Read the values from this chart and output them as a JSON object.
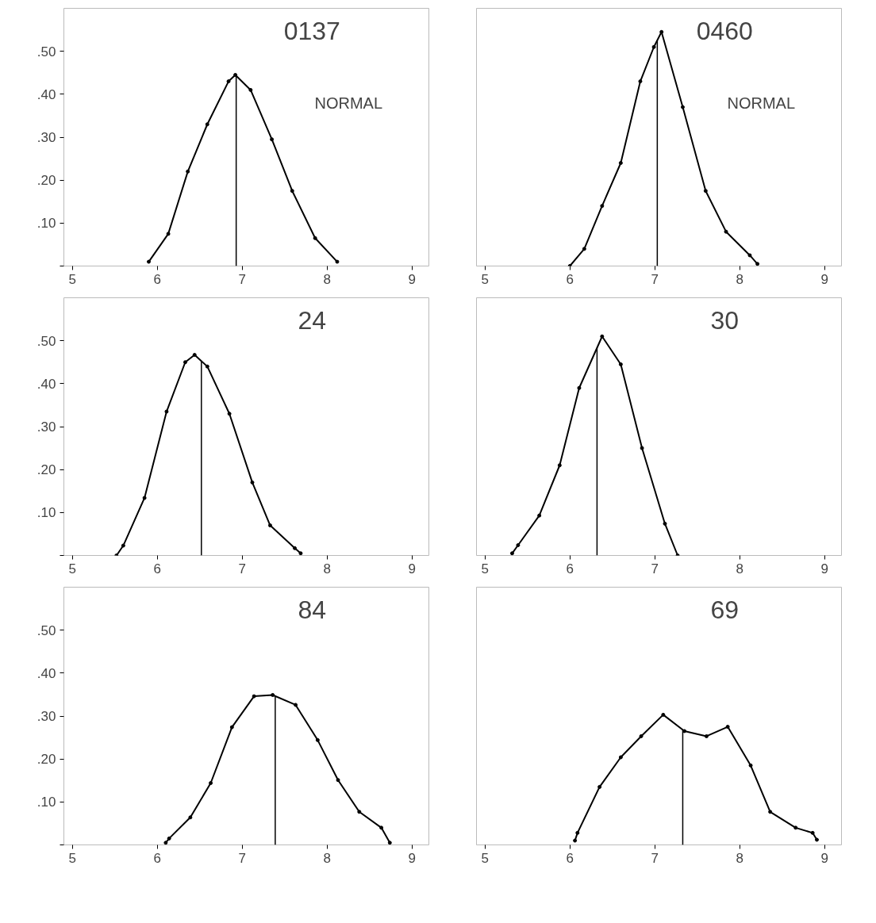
{
  "chart_data": [
    {
      "type": "line",
      "title": "0137",
      "annotations": [
        "NORMAL"
      ],
      "marker": "circle",
      "grid": false,
      "series": [
        {
          "color": "#000000",
          "x": [
            5.9,
            6.13,
            6.36,
            6.59,
            6.84,
            6.92,
            7.1,
            7.35,
            7.59,
            7.86,
            8.12
          ],
          "values": [
            0.01,
            0.075,
            0.22,
            0.33,
            0.43,
            0.445,
            0.41,
            0.295,
            0.175,
            0.065,
            0.01
          ]
        }
      ],
      "ref_lines": [
        {
          "axis": "x",
          "value": 6.93
        }
      ],
      "xlim": [
        4.9,
        9.2
      ],
      "xticks": [
        5,
        6,
        7,
        8,
        9
      ],
      "ylim": [
        0,
        0.6
      ],
      "yticks": [
        {
          "value": 0,
          "label": null
        },
        {
          "value": 0.1,
          "label": ".10"
        },
        {
          "value": 0.2,
          "label": ".20"
        },
        {
          "value": 0.3,
          "label": ".30"
        },
        {
          "value": 0.4,
          "label": ".40"
        },
        {
          "value": 0.5,
          "label": ".50"
        }
      ]
    },
    {
      "type": "line",
      "title": "0460",
      "annotations": [
        "NORMAL"
      ],
      "marker": "circle",
      "grid": false,
      "tick_labels": "x",
      "series": [
        {
          "color": "#000000",
          "x": [
            6.0,
            6.17,
            6.38,
            6.6,
            6.83,
            6.99,
            7.08,
            7.33,
            7.6,
            7.84,
            8.12,
            8.21
          ],
          "values": [
            0.0,
            0.04,
            0.14,
            0.24,
            0.43,
            0.51,
            0.545,
            0.37,
            0.175,
            0.08,
            0.025,
            0.005
          ]
        }
      ],
      "ref_lines": [
        {
          "axis": "x",
          "value": 7.03
        }
      ],
      "xlim": [
        4.9,
        9.2
      ],
      "xticks": [
        5,
        6,
        7,
        8,
        9
      ],
      "ylim": [
        0,
        0.6
      ]
    },
    {
      "type": "line",
      "title": "24",
      "marker": "circle",
      "grid": false,
      "series": [
        {
          "color": "#000000",
          "x": [
            5.52,
            5.6,
            5.85,
            6.11,
            6.33,
            6.44,
            6.59,
            6.85,
            7.12,
            7.33,
            7.62,
            7.69
          ],
          "values": [
            0.0,
            0.023,
            0.134,
            0.335,
            0.45,
            0.467,
            0.44,
            0.33,
            0.17,
            0.07,
            0.017,
            0.005
          ]
        }
      ],
      "ref_lines": [
        {
          "axis": "x",
          "value": 6.52
        }
      ],
      "xlim": [
        4.9,
        9.2
      ],
      "xticks": [
        5,
        6,
        7,
        8,
        9
      ],
      "ylim": [
        0,
        0.6
      ],
      "yticks": [
        {
          "value": 0,
          "label": null
        },
        {
          "value": 0.1,
          "label": ".10"
        },
        {
          "value": 0.2,
          "label": ".20"
        },
        {
          "value": 0.3,
          "label": ".30"
        },
        {
          "value": 0.4,
          "label": ".40"
        },
        {
          "value": 0.5,
          "label": ".50"
        }
      ]
    },
    {
      "type": "line",
      "title": "30",
      "marker": "circle",
      "grid": false,
      "tick_labels": "x",
      "series": [
        {
          "color": "#000000",
          "x": [
            5.32,
            5.39,
            5.64,
            5.88,
            6.11,
            6.38,
            6.6,
            6.85,
            7.12,
            7.27
          ],
          "values": [
            0.005,
            0.024,
            0.093,
            0.21,
            0.39,
            0.51,
            0.445,
            0.25,
            0.074,
            0.0
          ]
        }
      ],
      "ref_lines": [
        {
          "axis": "x",
          "value": 6.32
        }
      ],
      "xlim": [
        4.9,
        9.2
      ],
      "xticks": [
        5,
        6,
        7,
        8,
        9
      ],
      "ylim": [
        0,
        0.6
      ]
    },
    {
      "type": "line",
      "title": "84",
      "marker": "circle",
      "grid": false,
      "series": [
        {
          "color": "#000000",
          "x": [
            6.1,
            6.14,
            6.39,
            6.63,
            6.88,
            7.14,
            7.36,
            7.63,
            7.89,
            8.13,
            8.38,
            8.64,
            8.74
          ],
          "values": [
            0.005,
            0.015,
            0.064,
            0.144,
            0.274,
            0.346,
            0.349,
            0.326,
            0.244,
            0.151,
            0.077,
            0.04,
            0.005
          ]
        }
      ],
      "ref_lines": [
        {
          "axis": "x",
          "value": 7.39
        }
      ],
      "xlim": [
        4.9,
        9.2
      ],
      "xticks": [
        5,
        6,
        7,
        8,
        9
      ],
      "ylim": [
        0,
        0.6
      ],
      "yticks": [
        {
          "value": 0,
          "label": null
        },
        {
          "value": 0.1,
          "label": ".10"
        },
        {
          "value": 0.2,
          "label": ".20"
        },
        {
          "value": 0.3,
          "label": ".30"
        },
        {
          "value": 0.4,
          "label": ".40"
        },
        {
          "value": 0.5,
          "label": ".50"
        }
      ]
    },
    {
      "type": "line",
      "title": "69",
      "marker": "circle",
      "grid": false,
      "tick_labels": "x",
      "series": [
        {
          "color": "#000000",
          "x": [
            6.06,
            6.09,
            6.35,
            6.6,
            6.84,
            7.1,
            7.35,
            7.61,
            7.86,
            8.13,
            8.36,
            8.66,
            8.86,
            8.91
          ],
          "values": [
            0.01,
            0.028,
            0.135,
            0.204,
            0.253,
            0.303,
            0.265,
            0.253,
            0.275,
            0.185,
            0.077,
            0.04,
            0.028,
            0.012
          ]
        }
      ],
      "ref_lines": [
        {
          "axis": "x",
          "value": 7.33
        }
      ],
      "xlim": [
        4.9,
        9.2
      ],
      "xticks": [
        5,
        6,
        7,
        8,
        9
      ],
      "ylim": [
        0,
        0.6
      ]
    }
  ]
}
